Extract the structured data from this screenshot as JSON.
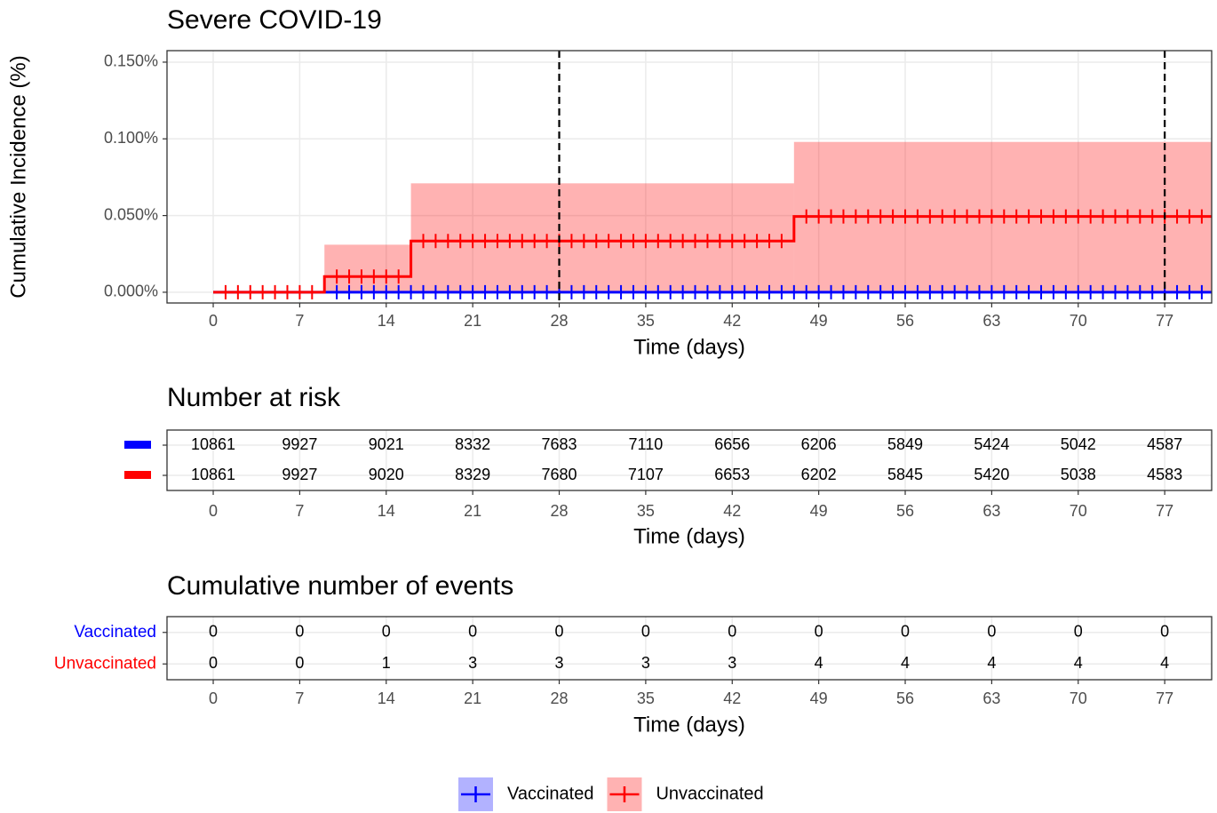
{
  "chart_data": [
    {
      "type": "step",
      "title": "Severe COVID-19",
      "xlabel": "Time (days)",
      "ylabel": "Cumulative Incidence (%)",
      "xlim": [
        -3.74,
        80.8
      ],
      "ylim": [
        -0.007,
        0.1575
      ],
      "xticks": [
        0,
        7,
        14,
        21,
        28,
        35,
        42,
        49,
        56,
        63,
        70,
        77
      ],
      "yticks": [
        {
          "value": 0,
          "label": "0.000%"
        },
        {
          "value": 0.05,
          "label": "0.050%"
        },
        {
          "value": 0.1,
          "label": "0.100%"
        },
        {
          "value": 0.15,
          "label": "0.150%"
        }
      ],
      "grid": true,
      "vlines": [
        28,
        77
      ],
      "legend": "bottom",
      "series": [
        {
          "name": "Vaccinated",
          "color": "#0000ff",
          "x": [
            0
          ],
          "values": [
            0
          ],
          "censor": [
            10,
            11,
            12,
            13,
            14,
            15,
            16,
            17,
            18,
            19,
            20,
            21,
            22,
            23,
            24,
            25,
            26,
            27,
            28,
            29,
            30,
            31,
            32,
            33,
            34,
            35,
            36,
            37,
            38,
            39,
            40,
            41,
            42,
            43,
            44,
            45,
            46,
            47,
            48,
            49,
            50,
            51,
            52,
            53,
            54,
            55,
            56,
            57,
            58,
            59,
            60,
            61,
            62,
            63,
            64,
            65,
            66,
            67,
            68,
            69,
            70,
            71,
            72,
            73,
            74,
            75,
            76,
            77,
            78,
            79,
            80
          ]
        },
        {
          "name": "Unvaccinated",
          "color": "#ff0000",
          "x": [
            0,
            9,
            16,
            47
          ],
          "values": [
            0,
            0.0102,
            0.0334,
            0.0494
          ],
          "ci_lower": [
            0,
            0,
            0,
            0
          ],
          "ci_upper": [
            0,
            0.031,
            0.071,
            0.098
          ],
          "censor": [
            1,
            2,
            3,
            4,
            5,
            6,
            7,
            8,
            10,
            11,
            12,
            13,
            14,
            15,
            17,
            18,
            19,
            20,
            21,
            22,
            23,
            24,
            25,
            26,
            27,
            28,
            29,
            30,
            31,
            32,
            33,
            34,
            35,
            36,
            37,
            38,
            39,
            40,
            41,
            42,
            43,
            44,
            45,
            46,
            48,
            49,
            50,
            51,
            52,
            53,
            54,
            55,
            56,
            57,
            58,
            59,
            60,
            61,
            62,
            63,
            64,
            65,
            66,
            67,
            68,
            69,
            70,
            71,
            72,
            73,
            74,
            75,
            76,
            77,
            78,
            79,
            80
          ]
        }
      ]
    },
    {
      "type": "table",
      "title": "Number at risk",
      "xlabel": "Time (days)",
      "xlim": [
        -3.74,
        80.8
      ],
      "xticks": [
        0,
        7,
        14,
        21,
        28,
        35,
        42,
        49,
        56,
        63,
        70,
        77
      ],
      "series": [
        {
          "color": "#0000ff",
          "values": [
            10861,
            9927,
            9021,
            8332,
            7683,
            7110,
            6656,
            6206,
            5849,
            5424,
            5042,
            4587
          ]
        },
        {
          "color": "#ff0000",
          "values": [
            10861,
            9927,
            9020,
            8329,
            7680,
            7107,
            6653,
            6202,
            5845,
            5420,
            5038,
            4583
          ]
        }
      ]
    },
    {
      "type": "table",
      "title": "Cumulative number of events",
      "xlabel": "Time (days)",
      "xlim": [
        -3.74,
        80.8
      ],
      "xticks": [
        0,
        7,
        14,
        21,
        28,
        35,
        42,
        49,
        56,
        63,
        70,
        77
      ],
      "series": [
        {
          "name": "Vaccinated",
          "color": "#0000ff",
          "values": [
            0,
            0,
            0,
            0,
            0,
            0,
            0,
            0,
            0,
            0,
            0,
            0
          ]
        },
        {
          "name": "Unvaccinated",
          "color": "#ff0000",
          "values": [
            0,
            0,
            1,
            3,
            3,
            3,
            3,
            4,
            4,
            4,
            4,
            4
          ]
        }
      ]
    }
  ]
}
